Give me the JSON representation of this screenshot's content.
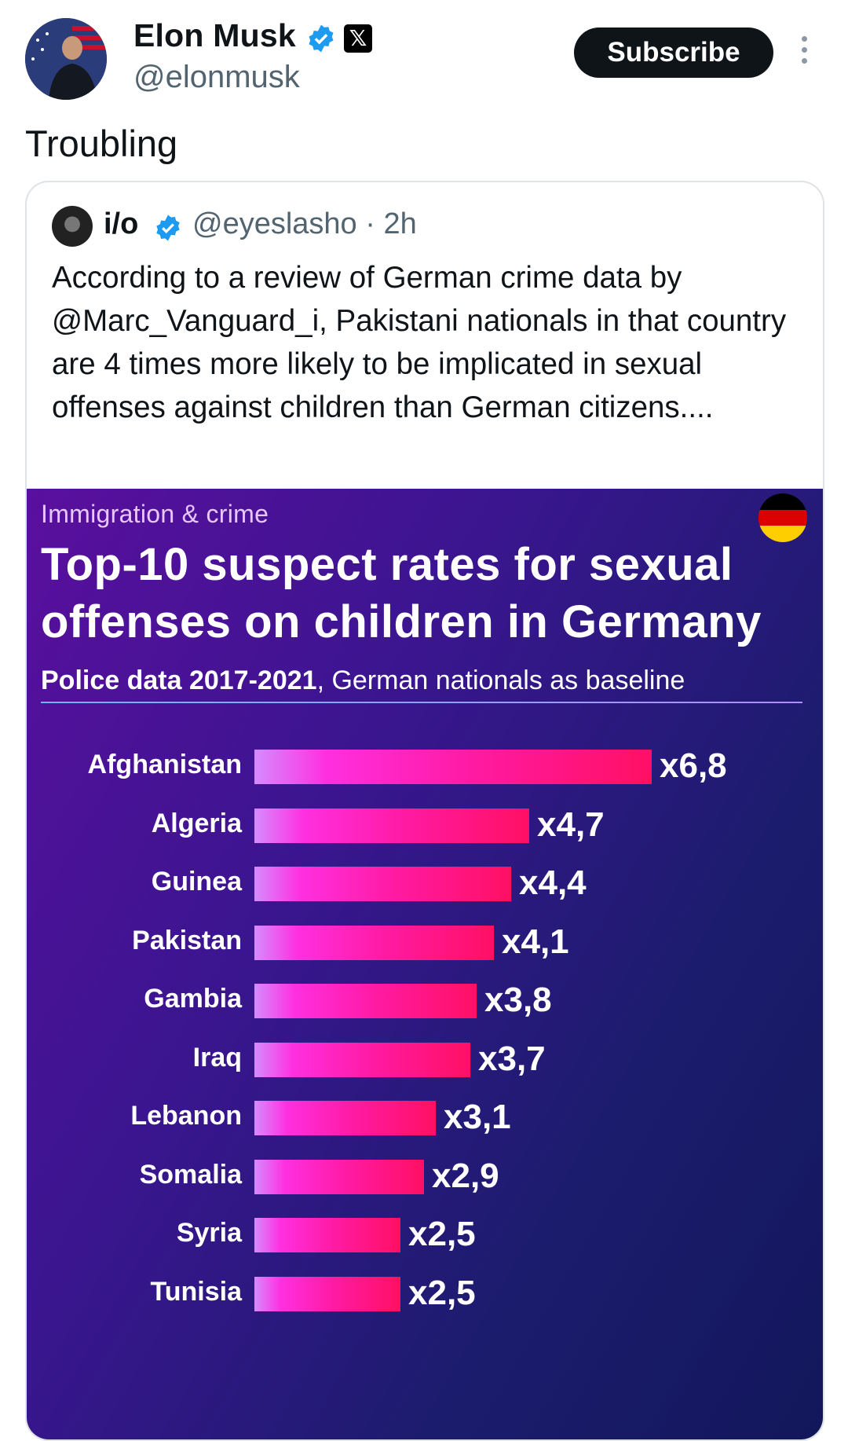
{
  "author": {
    "name": "Elon Musk",
    "handle": "@elonmusk",
    "verified_icon": "verified-badge-icon",
    "platform_icon": "x-logo-icon"
  },
  "actions": {
    "subscribe_label": "Subscribe",
    "more_icon": "more-vertical-icon"
  },
  "post": {
    "text": "Troubling"
  },
  "quoted": {
    "name": "i/o",
    "handle": "@eyeslasho · 2h",
    "text": "According to a review of German crime data by @Marc_Vanguard_i, Pakistani nationals in that country are 4 times more likely to be implicated in sexual offenses against children than German citizens...."
  },
  "infographic": {
    "kicker": "Immigration & crime",
    "title": "Top-10 suspect rates for sexual offenses on children in Germany",
    "subtitle_bold": "Police data 2017-2021",
    "subtitle_rest": ", German nationals as baseline",
    "flag_colors": [
      "#000000",
      "#dd0000",
      "#ffce00"
    ]
  },
  "chart_data": {
    "type": "bar",
    "orientation": "horizontal",
    "title": "Top-10 suspect rates for sexual offenses on children in Germany",
    "categories": [
      "Afghanistan",
      "Algeria",
      "Guinea",
      "Pakistan",
      "Gambia",
      "Iraq",
      "Lebanon",
      "Somalia",
      "Syria",
      "Tunisia"
    ],
    "values": [
      6.8,
      4.7,
      4.4,
      4.1,
      3.8,
      3.7,
      3.1,
      2.9,
      2.5,
      2.5
    ],
    "value_labels": [
      "x6,8",
      "x4,7",
      "x4,4",
      "x4,1",
      "x3,8",
      "x3,7",
      "x3,1",
      "x2,9",
      "x2,5",
      "x2,5"
    ],
    "xlim": [
      0,
      6.8
    ],
    "grid": false,
    "colors": {
      "bar_start": "#d68bff",
      "bar_end": "#ff1064"
    }
  }
}
